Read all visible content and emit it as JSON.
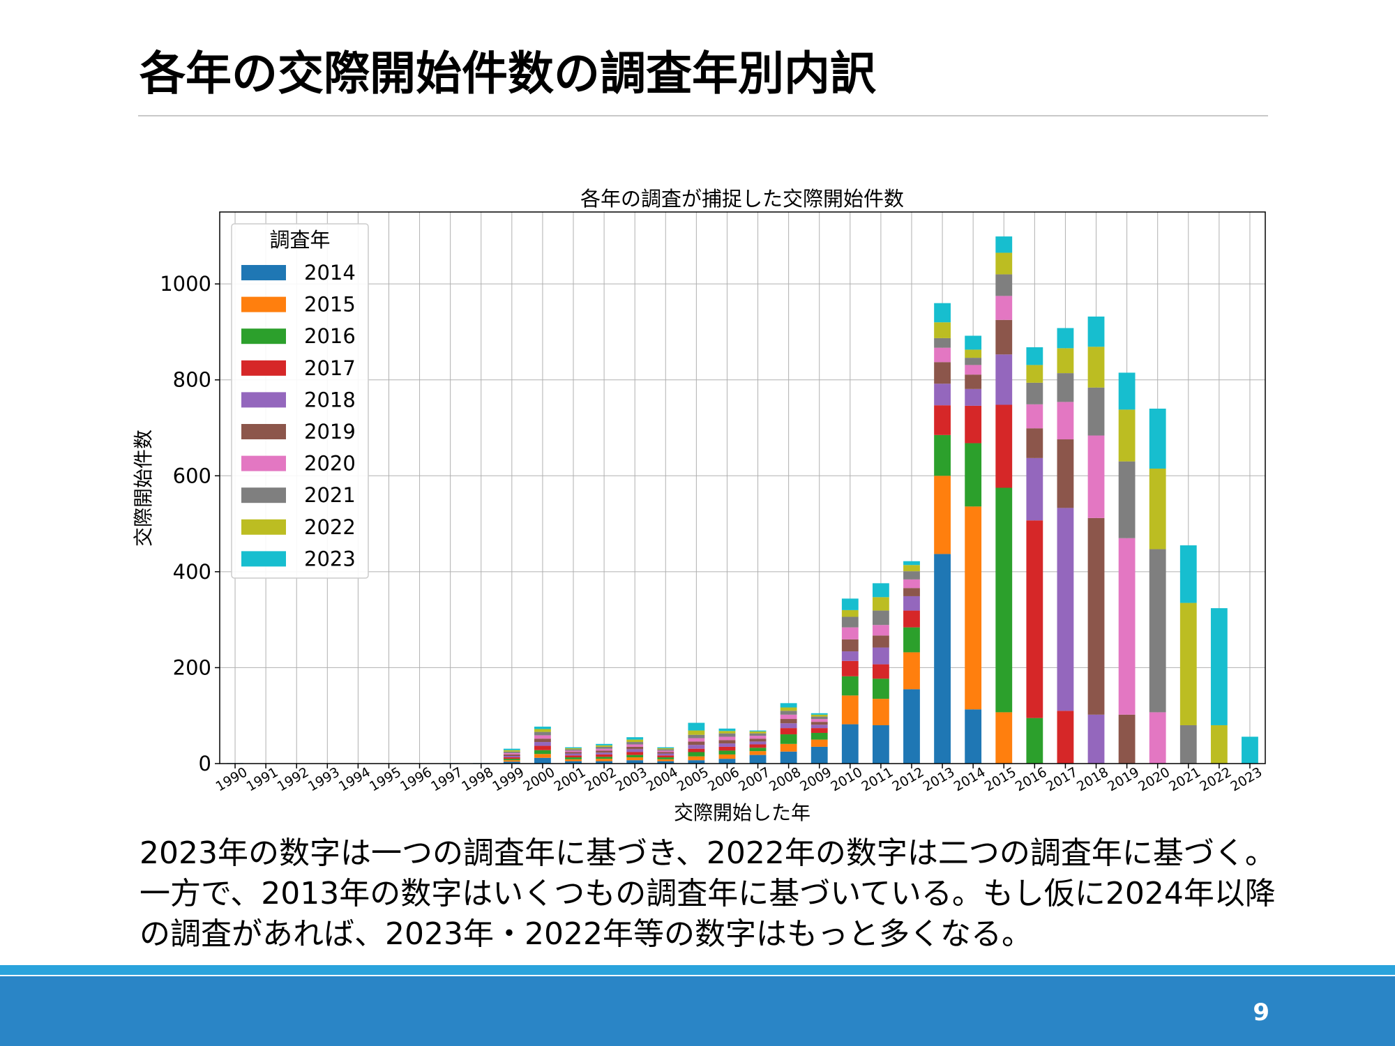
{
  "slide": {
    "title": "各年の交際開始件数の調査年別内訳",
    "caption_lines": [
      "2023年の数字は一つの調査年に基づき、2022年の数字は二つの調査年に基づく。",
      "一方で、2013年の数字はいくつもの調査年に基づいている。もし仮に2024年以降",
      "の調査があれば、2023年・2022年等の数字はもっと多くなる。"
    ],
    "page_number": "9",
    "colors": {
      "footer": "#2a85c6",
      "footer_line": "#2aa3dc"
    }
  },
  "chart_data": {
    "type": "bar",
    "stacked": true,
    "title": "各年の調査が捕捉した交際開始件数",
    "xlabel": "交際開始した年",
    "ylabel": "交際開始件数",
    "ylim": [
      0,
      1150
    ],
    "yticks": [
      0,
      200,
      400,
      600,
      800,
      1000
    ],
    "grid": true,
    "legend_title": "調査年",
    "legend_position": "top-left",
    "categories": [
      "1990",
      "1991",
      "1992",
      "1993",
      "1994",
      "1995",
      "1996",
      "1997",
      "1998",
      "1999",
      "2000",
      "2001",
      "2002",
      "2003",
      "2004",
      "2005",
      "2006",
      "2007",
      "2008",
      "2009",
      "2010",
      "2011",
      "2012",
      "2013",
      "2014",
      "2015",
      "2016",
      "2017",
      "2018",
      "2019",
      "2020",
      "2021",
      "2022",
      "2023"
    ],
    "series": [
      {
        "name": "2014",
        "color": "#1f77b4",
        "values": [
          1,
          0,
          0,
          0,
          0,
          0,
          0,
          1,
          1,
          4,
          12,
          5,
          5,
          7,
          5,
          7,
          10,
          18,
          25,
          35,
          82,
          80,
          155,
          437,
          113,
          0,
          0,
          0,
          0,
          0,
          0,
          0,
          0,
          0
        ]
      },
      {
        "name": "2015",
        "color": "#ff7f0e",
        "values": [
          0,
          0,
          0,
          0,
          0,
          0,
          0,
          0,
          0,
          3,
          8,
          4,
          5,
          6,
          4,
          8,
          9,
          8,
          16,
          15,
          60,
          55,
          77,
          163,
          423,
          107,
          0,
          0,
          0,
          0,
          0,
          0,
          0,
          0
        ]
      },
      {
        "name": "2016",
        "color": "#2ca02c",
        "values": [
          0,
          0,
          0,
          0,
          0,
          0,
          0,
          0,
          0,
          3,
          8,
          4,
          4,
          5,
          4,
          9,
          8,
          7,
          20,
          14,
          40,
          42,
          52,
          85,
          132,
          468,
          95,
          0,
          0,
          0,
          0,
          0,
          0,
          0
        ]
      },
      {
        "name": "2017",
        "color": "#d62728",
        "values": [
          0,
          0,
          0,
          0,
          0,
          0,
          0,
          0,
          0,
          3,
          9,
          4,
          5,
          6,
          4,
          7,
          8,
          7,
          13,
          10,
          32,
          30,
          35,
          62,
          78,
          173,
          412,
          110,
          0,
          0,
          0,
          0,
          0,
          0
        ]
      },
      {
        "name": "2018",
        "color": "#9467bd",
        "values": [
          0,
          0,
          0,
          0,
          0,
          0,
          0,
          0,
          0,
          3,
          8,
          4,
          4,
          6,
          4,
          8,
          7,
          6,
          10,
          7,
          20,
          35,
          30,
          45,
          35,
          105,
          130,
          423,
          102,
          0,
          0,
          0,
          0,
          0
        ]
      },
      {
        "name": "2019",
        "color": "#8c564b",
        "values": [
          0,
          0,
          0,
          0,
          0,
          0,
          0,
          0,
          0,
          3,
          7,
          3,
          4,
          5,
          3,
          7,
          7,
          6,
          9,
          6,
          25,
          25,
          17,
          45,
          30,
          72,
          62,
          143,
          410,
          102,
          0,
          0,
          0,
          0
        ]
      },
      {
        "name": "2020",
        "color": "#e377c2",
        "values": [
          0,
          0,
          0,
          0,
          0,
          0,
          0,
          0,
          0,
          3,
          7,
          3,
          4,
          5,
          3,
          7,
          7,
          6,
          9,
          6,
          25,
          22,
          18,
          30,
          20,
          50,
          50,
          78,
          172,
          368,
          107,
          0,
          0,
          0
        ]
      },
      {
        "name": "2021",
        "color": "#7f7f7f",
        "values": [
          0,
          0,
          0,
          0,
          0,
          0,
          0,
          0,
          0,
          3,
          7,
          3,
          4,
          5,
          3,
          7,
          7,
          5,
          8,
          5,
          22,
          30,
          17,
          20,
          15,
          45,
          45,
          60,
          100,
          160,
          340,
          80,
          0,
          0
        ]
      },
      {
        "name": "2022",
        "color": "#bcbd22",
        "values": [
          0,
          0,
          0,
          0,
          0,
          0,
          0,
          0,
          0,
          3,
          6,
          2,
          3,
          5,
          2,
          9,
          5,
          4,
          7,
          4,
          14,
          28,
          13,
          33,
          17,
          45,
          37,
          52,
          85,
          108,
          168,
          255,
          80,
          0
        ]
      },
      {
        "name": "2023",
        "color": "#17becf",
        "values": [
          0,
          0,
          0,
          0,
          0,
          0,
          0,
          0,
          0,
          3,
          5,
          2,
          3,
          5,
          2,
          16,
          5,
          2,
          9,
          3,
          24,
          29,
          8,
          40,
          29,
          34,
          37,
          42,
          63,
          77,
          125,
          120,
          244,
          56
        ]
      }
    ]
  }
}
